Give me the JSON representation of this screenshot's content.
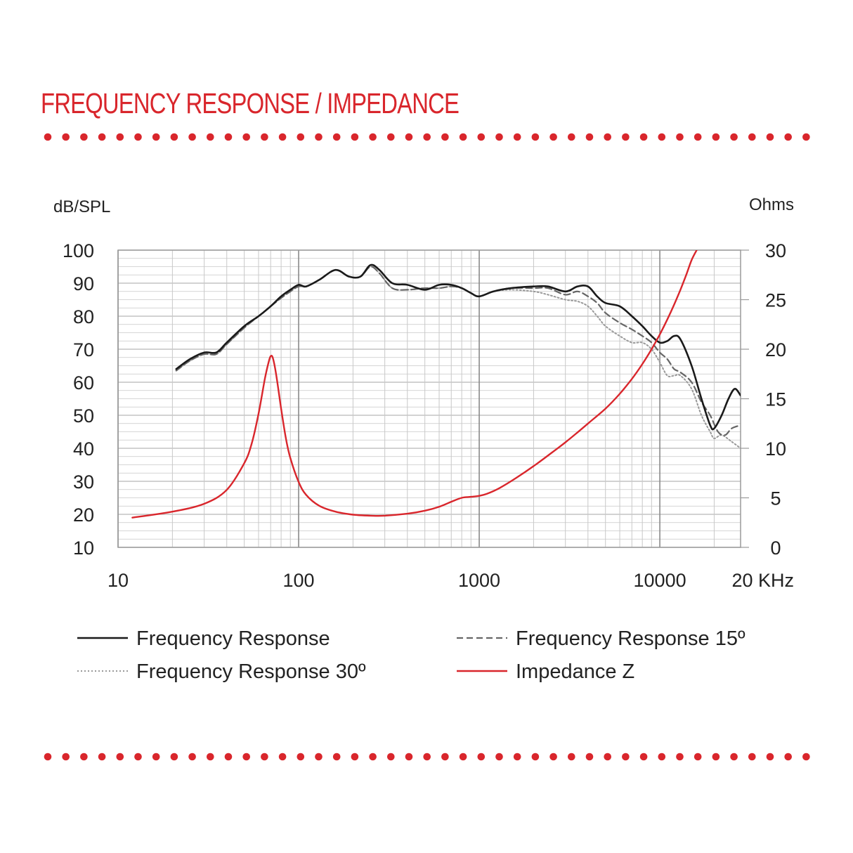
{
  "title": "FREQUENCY RESPONSE / IMPEDANCE",
  "colors": {
    "accent": "#d9262c",
    "grid": "#c8c8c8",
    "frame": "#9a9a9a",
    "response": "#1a1a1a",
    "response15": "#666666",
    "response30": "#999999",
    "impedance": "#d9262c"
  },
  "chart_data": {
    "type": "line",
    "x_scale": "log",
    "xlim": [
      10,
      28000
    ],
    "ylim": [
      10,
      100
    ],
    "y2lim": [
      0,
      30
    ],
    "xlabel": "20 KHz",
    "ylabel": "dB/SPL",
    "y2label": "Ohms",
    "x_ticks": [
      {
        "value": 10,
        "label": "10"
      },
      {
        "value": 100,
        "label": "100"
      },
      {
        "value": 1000,
        "label": "1000"
      },
      {
        "value": 10000,
        "label": "10000"
      }
    ],
    "y_ticks": [
      10,
      20,
      30,
      40,
      50,
      60,
      70,
      80,
      90,
      100
    ],
    "y2_ticks": [
      0,
      5,
      10,
      15,
      20,
      25,
      30
    ],
    "grid": true,
    "legend_position": "bottom",
    "series": [
      {
        "name": "Frequency Response",
        "axis": "left",
        "style": "solid",
        "x": [
          21,
          25,
          30,
          35,
          40,
          50,
          60,
          70,
          80,
          90,
          100,
          110,
          130,
          160,
          190,
          220,
          250,
          280,
          330,
          400,
          500,
          600,
          700,
          800,
          900,
          1000,
          1200,
          1500,
          2000,
          2400,
          3000,
          3500,
          4000,
          4500,
          5000,
          6000,
          7000,
          8000,
          9000,
          10000,
          11000,
          12000,
          13000,
          15000,
          17000,
          19000,
          20000,
          22000,
          24000,
          26000,
          28000
        ],
        "y": [
          64,
          67,
          69,
          69,
          72,
          77,
          80,
          83,
          86,
          88,
          89.5,
          89,
          91,
          94,
          92,
          92,
          95.5,
          94,
          90,
          89.5,
          88,
          89.5,
          89.5,
          88.5,
          87,
          86,
          87.5,
          88.5,
          89,
          89,
          87.5,
          89,
          89,
          86,
          84,
          83,
          80,
          77,
          74,
          72,
          72.5,
          74,
          73,
          65,
          55,
          47,
          46,
          50,
          55,
          58,
          56
        ]
      },
      {
        "name": "Frequency Response 15º",
        "axis": "left",
        "style": "dashed",
        "x": [
          21,
          25,
          30,
          35,
          40,
          50,
          60,
          70,
          80,
          90,
          100,
          110,
          130,
          160,
          190,
          220,
          250,
          280,
          330,
          400,
          500,
          600,
          700,
          800,
          900,
          1000,
          1200,
          1500,
          2000,
          2400,
          3000,
          3500,
          4000,
          4500,
          5000,
          6000,
          7000,
          8000,
          9000,
          10000,
          11000,
          12000,
          13000,
          15000,
          17000,
          19000,
          21000,
          23000,
          25000,
          28000
        ],
        "y": [
          63.5,
          66.5,
          68.5,
          68.5,
          71.5,
          76.5,
          80,
          83,
          85.5,
          87.5,
          89,
          89,
          91,
          94,
          92,
          92,
          95,
          93,
          88.5,
          88,
          88.5,
          88.5,
          89,
          88.5,
          87,
          86,
          87.5,
          88.5,
          88.5,
          88.5,
          86.5,
          87.5,
          86,
          84,
          81,
          78,
          76,
          74,
          72,
          69,
          67,
          64,
          63,
          60,
          54,
          50,
          45,
          44,
          46,
          47
        ]
      },
      {
        "name": "Frequency Response 30º",
        "axis": "left",
        "style": "dotted",
        "x": [
          21,
          25,
          30,
          35,
          40,
          50,
          60,
          70,
          80,
          90,
          100,
          110,
          130,
          160,
          190,
          220,
          250,
          280,
          330,
          400,
          500,
          600,
          700,
          800,
          900,
          1000,
          1200,
          1500,
          2000,
          2400,
          3000,
          3500,
          4000,
          4500,
          5000,
          6000,
          7000,
          8000,
          9000,
          10000,
          11000,
          12000,
          13000,
          15000,
          17000,
          19000,
          20000,
          22000,
          25000,
          28000
        ],
        "y": [
          63.5,
          66.5,
          68.5,
          68.5,
          71.5,
          76.5,
          80,
          83,
          85.5,
          87.5,
          89,
          89,
          91,
          94,
          92,
          92,
          95,
          93,
          88.5,
          88,
          88.5,
          88.5,
          89,
          88.5,
          87,
          86,
          87.5,
          88,
          87.5,
          86.5,
          85,
          84.5,
          83,
          80,
          77,
          74,
          72,
          72,
          70,
          66,
          62,
          62,
          62,
          58,
          50,
          45,
          43,
          44,
          42,
          40
        ]
      },
      {
        "name": "Impedance Z",
        "axis": "right",
        "style": "solid",
        "x": [
          12,
          20,
          30,
          40,
          50,
          55,
          60,
          65,
          68,
          70,
          72,
          75,
          80,
          85,
          90,
          100,
          110,
          130,
          160,
          200,
          250,
          300,
          400,
          500,
          600,
          700,
          800,
          900,
          1000,
          1100,
          1300,
          1600,
          2000,
          2500,
          3000,
          3500,
          4000,
          5000,
          6000,
          7000,
          8000,
          9000,
          10000,
          11000,
          12000,
          13000,
          14000,
          15000,
          16000
        ],
        "y": [
          3,
          3.6,
          4.4,
          5.8,
          8.5,
          10.5,
          13.5,
          17,
          18.6,
          19.3,
          19.1,
          17.5,
          14,
          11,
          9,
          6.6,
          5.3,
          4.2,
          3.6,
          3.3,
          3.2,
          3.2,
          3.4,
          3.7,
          4.1,
          4.6,
          5,
          5.1,
          5.2,
          5.4,
          6,
          7,
          8.2,
          9.5,
          10.6,
          11.6,
          12.5,
          14,
          15.5,
          17,
          18.5,
          20,
          21.5,
          23,
          24.5,
          26,
          27.5,
          29,
          30
        ]
      }
    ]
  }
}
